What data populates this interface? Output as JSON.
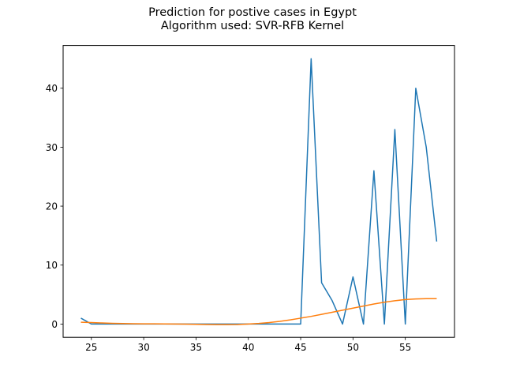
{
  "chart_data": {
    "type": "line",
    "title": [
      "Prediction for postive cases in Egypt",
      "Algorithm used: SVR-RFB Kernel"
    ],
    "xlabel": "",
    "ylabel": "",
    "xlim": [
      22.3,
      59.7
    ],
    "ylim": [
      -2.25,
      47.25
    ],
    "x_ticks": [
      25,
      30,
      35,
      40,
      45,
      50,
      55
    ],
    "y_ticks": [
      0,
      10,
      20,
      30,
      40
    ],
    "grid": false,
    "legend": "none",
    "series": [
      {
        "color": "#1f77b4",
        "x": [
          24,
          25,
          26,
          27,
          28,
          29,
          30,
          31,
          32,
          33,
          34,
          35,
          36,
          37,
          38,
          39,
          40,
          41,
          42,
          43,
          44,
          45,
          46,
          47,
          48,
          49,
          50,
          51,
          52,
          53,
          54,
          55,
          56,
          57,
          58
        ],
        "y": [
          1,
          0,
          0,
          0,
          0,
          0,
          0,
          0,
          0,
          0,
          0,
          0,
          0,
          0,
          0,
          0,
          0,
          0,
          0,
          0,
          0,
          0,
          45,
          7,
          4,
          0,
          8,
          0,
          26,
          0,
          33,
          0,
          40,
          30,
          14
        ]
      },
      {
        "color": "#ff7f0e",
        "x": [
          24,
          25,
          26,
          27,
          28,
          29,
          30,
          31,
          32,
          33,
          34,
          35,
          36,
          37,
          38,
          39,
          40,
          41,
          42,
          43,
          44,
          45,
          46,
          47,
          48,
          49,
          50,
          51,
          52,
          53,
          54,
          55,
          56,
          57,
          58
        ],
        "y": [
          0.3,
          0.25,
          0.18,
          0.12,
          0.08,
          0.05,
          0.04,
          0.03,
          0.02,
          0.0,
          -0.02,
          -0.05,
          -0.08,
          -0.1,
          -0.1,
          -0.08,
          0.0,
          0.1,
          0.25,
          0.45,
          0.7,
          1.0,
          1.3,
          1.65,
          2.0,
          2.35,
          2.7,
          3.05,
          3.4,
          3.7,
          3.95,
          4.15,
          4.25,
          4.3,
          4.3
        ]
      }
    ]
  }
}
